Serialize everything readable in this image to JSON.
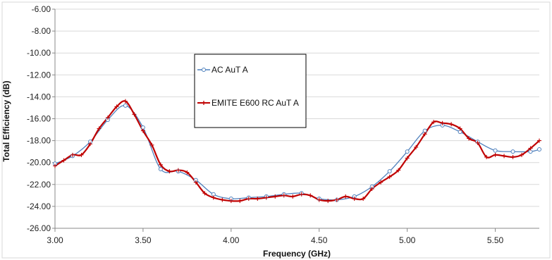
{
  "chart_data": {
    "type": "line",
    "title": "",
    "xlabel": "Frequency (GHz)",
    "ylabel": "Total Efficiency (dB)",
    "xlim": [
      3.0,
      5.75
    ],
    "ylim": [
      -26,
      -6
    ],
    "x_ticks": [
      "3.00",
      "3.50",
      "4.00",
      "4.50",
      "5.00",
      "5.50"
    ],
    "y_ticks": [
      "-6.00",
      "-8.00",
      "-10.00",
      "-12.00",
      "-14.00",
      "-16.00",
      "-18.00",
      "-20.00",
      "-22.00",
      "-24.00",
      "-26.00"
    ],
    "grid": "horizontal",
    "legend_position": "center",
    "series": [
      {
        "name": "AC AuT A",
        "color": "#4f81bd",
        "marker": "circle",
        "x": [
          3.0,
          3.1,
          3.2,
          3.3,
          3.4,
          3.5,
          3.6,
          3.7,
          3.8,
          3.9,
          4.0,
          4.1,
          4.2,
          4.3,
          4.4,
          4.5,
          4.6,
          4.7,
          4.8,
          4.9,
          5.0,
          5.1,
          5.2,
          5.3,
          5.4,
          5.5,
          5.6,
          5.7,
          5.75
        ],
        "y": [
          -20.1,
          -19.4,
          -18.1,
          -16.1,
          -14.8,
          -16.8,
          -20.6,
          -20.8,
          -21.6,
          -22.9,
          -23.3,
          -23.2,
          -23.1,
          -22.9,
          -22.8,
          -23.3,
          -23.4,
          -23.1,
          -22.2,
          -20.8,
          -19.0,
          -17.1,
          -16.6,
          -17.2,
          -18.1,
          -18.9,
          -19.0,
          -19.0,
          -18.8
        ]
      },
      {
        "name": "EMITE E600 RC AuT A",
        "color": "#c00000",
        "marker": "plus",
        "x": [
          3.0,
          3.05,
          3.1,
          3.15,
          3.2,
          3.25,
          3.3,
          3.35,
          3.4,
          3.45,
          3.5,
          3.55,
          3.6,
          3.65,
          3.7,
          3.75,
          3.8,
          3.85,
          3.9,
          3.95,
          4.0,
          4.05,
          4.1,
          4.15,
          4.2,
          4.25,
          4.3,
          4.35,
          4.4,
          4.45,
          4.5,
          4.55,
          4.6,
          4.65,
          4.7,
          4.75,
          4.8,
          4.85,
          4.9,
          4.95,
          5.0,
          5.05,
          5.1,
          5.15,
          5.2,
          5.25,
          5.3,
          5.35,
          5.4,
          5.45,
          5.5,
          5.55,
          5.6,
          5.65,
          5.7,
          5.75
        ],
        "y": [
          -20.3,
          -19.8,
          -19.3,
          -19.3,
          -18.3,
          -16.9,
          -15.9,
          -14.9,
          -14.4,
          -15.6,
          -17.1,
          -18.4,
          -20.2,
          -20.8,
          -20.7,
          -20.9,
          -21.8,
          -22.8,
          -23.2,
          -23.4,
          -23.5,
          -23.5,
          -23.3,
          -23.3,
          -23.2,
          -23.1,
          -23.0,
          -23.1,
          -22.9,
          -23.0,
          -23.4,
          -23.5,
          -23.4,
          -23.1,
          -23.3,
          -23.3,
          -22.4,
          -21.8,
          -21.3,
          -20.7,
          -19.6,
          -18.6,
          -17.4,
          -16.3,
          -16.4,
          -16.5,
          -16.9,
          -17.8,
          -18.2,
          -19.5,
          -19.3,
          -19.4,
          -19.5,
          -19.3,
          -18.7,
          -18.0
        ]
      }
    ]
  }
}
